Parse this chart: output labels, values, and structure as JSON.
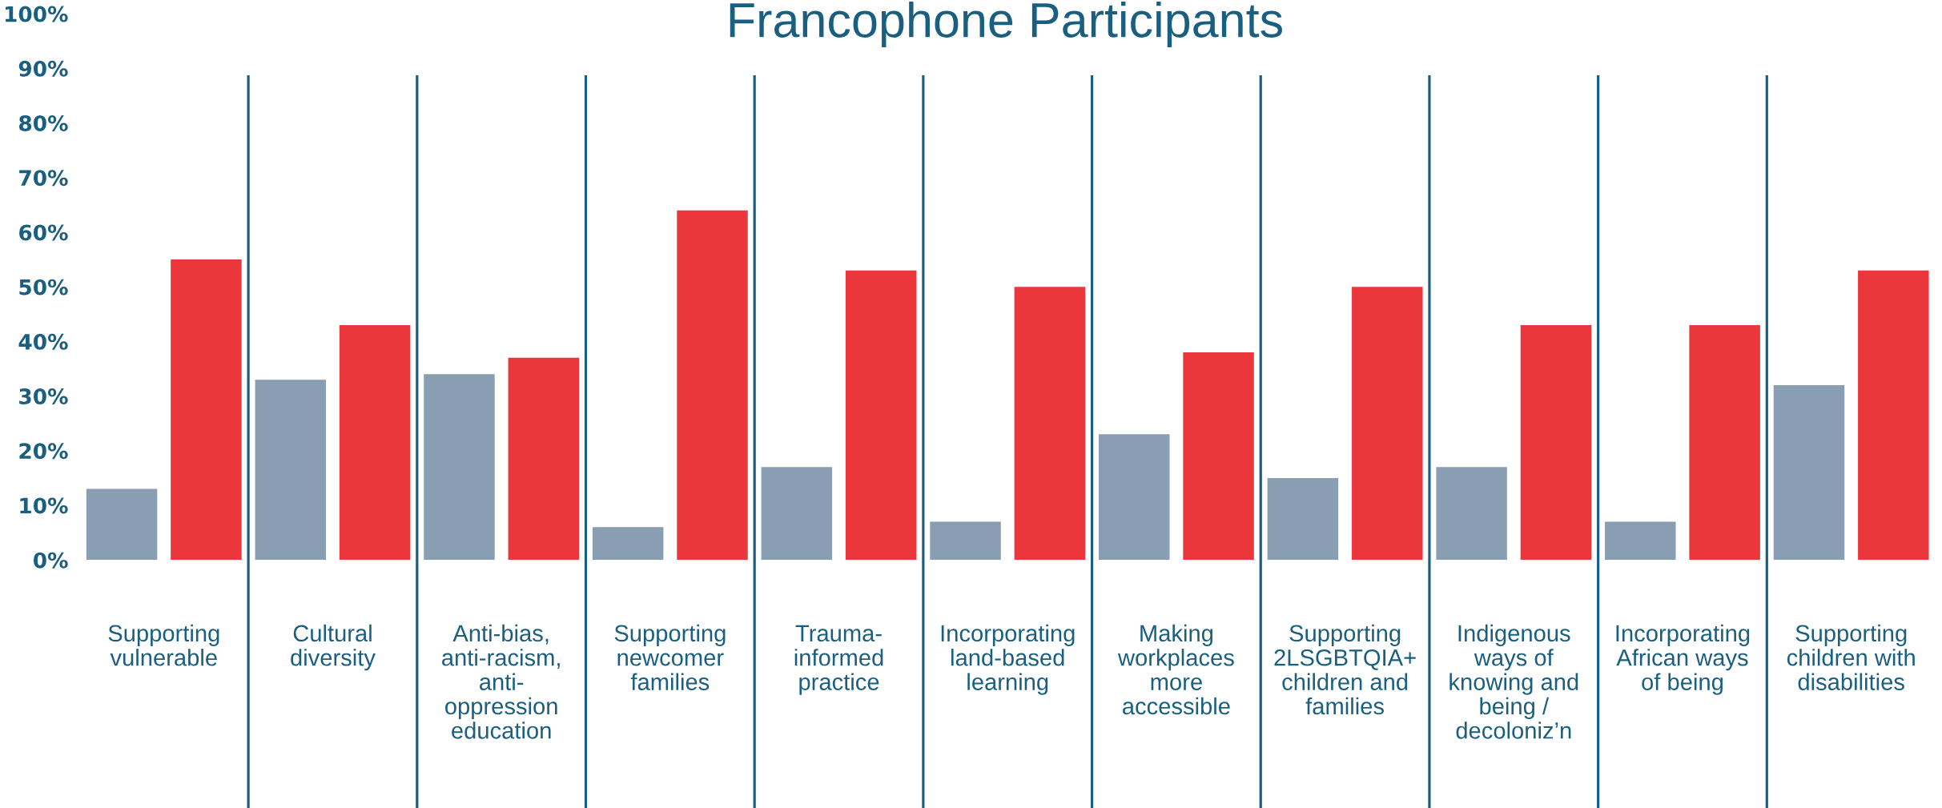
{
  "chart_data": {
    "type": "bar",
    "title": "Francophone Participants",
    "categories": [
      "Supporting\nvulnerable",
      "Cultural\ndiversity",
      "Anti-bias,\nanti-racism,\nanti-\noppression\neducation",
      "Supporting\nnewcomer\nfamilies",
      "Trauma-\ninformed\npractice",
      "Incorporating\nland-based\nlearning",
      "Making\nworkplaces\nmore\naccessible",
      "Supporting\n2LSGBTQIA+\nchildren and\nfamilies",
      "Indigenous\nways of\nknowing and\nbeing /\ndecoloniz’n",
      "Incorporating\nAfrican ways\nof being",
      "Supporting\nchildren with\ndisabilities"
    ],
    "series": [
      {
        "color": "#8a9eb3",
        "values": [
          13,
          33,
          34,
          6,
          17,
          7,
          23,
          15,
          17,
          7,
          32
        ]
      },
      {
        "color": "#eb373b",
        "values": [
          55,
          43,
          37,
          64,
          53,
          50,
          38,
          50,
          43,
          43,
          53
        ]
      }
    ],
    "ylim": [
      0,
      100
    ],
    "yticks": [
      {
        "value": 0,
        "label": "0%"
      },
      {
        "value": 10,
        "label": "10%"
      },
      {
        "value": 20,
        "label": "20%"
      },
      {
        "value": 30,
        "label": "30%"
      },
      {
        "value": 40,
        "label": "40%"
      },
      {
        "value": 50,
        "label": "50%"
      },
      {
        "value": 60,
        "label": "60%"
      },
      {
        "value": 70,
        "label": "70%"
      },
      {
        "value": 80,
        "label": "80%"
      },
      {
        "value": 90,
        "label": "90%"
      },
      {
        "value": 100,
        "label": "100%"
      }
    ],
    "grid": "x"
  }
}
